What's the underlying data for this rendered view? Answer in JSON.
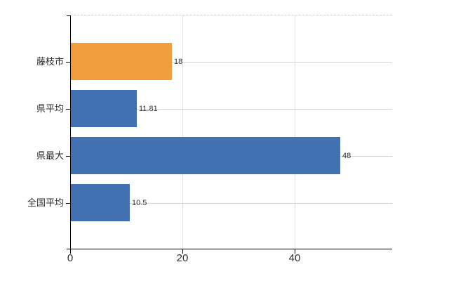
{
  "chart_data": {
    "type": "bar",
    "orientation": "horizontal",
    "title": "",
    "xlabel": "",
    "ylabel": "",
    "legend": "none",
    "categories": [
      "藤枝市",
      "県平均",
      "県最大",
      "全国平均"
    ],
    "values": [
      18,
      11.81,
      48,
      10.5
    ],
    "value_labels": [
      "18",
      "11.81",
      "48",
      "10.5"
    ],
    "bar_colors": [
      "#f09d3e",
      "#4271b2",
      "#4271b2",
      "#4271b2"
    ],
    "highlight_category": "藤枝市",
    "x_axis": {
      "min": 0,
      "max": 57.4,
      "ticks": [
        0,
        20,
        40
      ],
      "tick_labels": [
        "0",
        "20",
        "40"
      ]
    },
    "grid": {
      "vertical_gridlines_at": [
        20,
        40
      ],
      "horizontal_gridlines": "category-centers",
      "top_border_style": "dashed"
    }
  },
  "colors": {
    "background": "#ffffff",
    "bar_highlight": "#f09d3e",
    "bar_default": "#4271b2",
    "axis": "#000000",
    "h_gridline": "#d4d4d4",
    "v_gridline": "#dedede",
    "top_dashed": "#cccccc",
    "category_text": "#2b2b2b",
    "value_text": "#333333",
    "tick_text": "#303030"
  }
}
